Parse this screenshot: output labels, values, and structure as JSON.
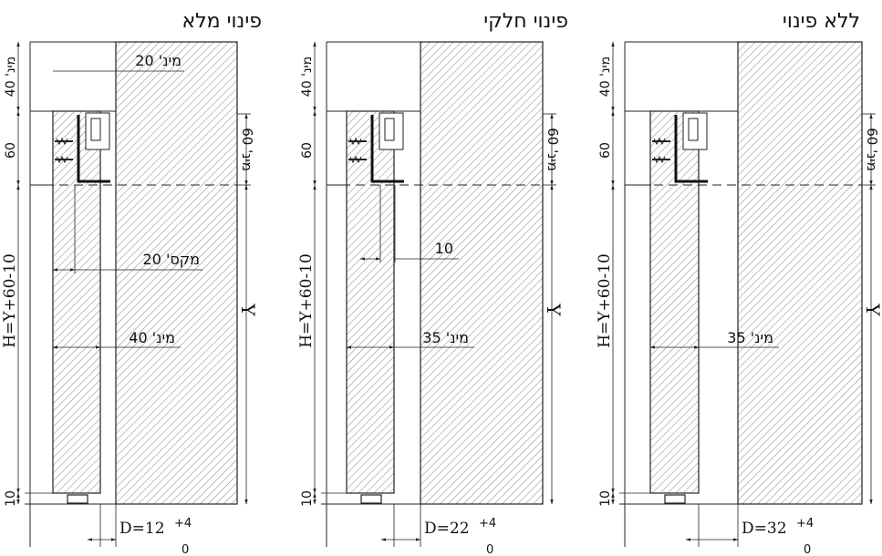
{
  "colors": {
    "line": "#222222",
    "hatch": "#555555",
    "background": "#ffffff"
  },
  "panels": [
    {
      "title": "פינוי מלא",
      "top_min": "מינ' 40",
      "top_min_20": "מינ' 20",
      "left_60": "60",
      "right_60": "מינ' 60",
      "max_label": "מקס' 20",
      "min_label": "מינ' 40",
      "h_formula": "H=Y+60-10",
      "y_label": "Y",
      "bottom_10": "10",
      "d_label": "D=12",
      "tol_plus": "+4",
      "tol_zero": "0"
    },
    {
      "title": "פינוי חלקי",
      "top_min": "מינ' 40",
      "left_60": "60",
      "right_60": "מינ' 60",
      "gap_label": "10",
      "min_label": "מינ' 35",
      "h_formula": "H=Y+60-10",
      "y_label": "Y",
      "bottom_10": "10",
      "d_label": "D=22",
      "tol_plus": "+4",
      "tol_zero": "0"
    },
    {
      "title": "ללא פינוי",
      "top_min": "מינ' 40",
      "left_60": "60",
      "right_60": "מינ' 60",
      "min_label": "מינ' 35",
      "h_formula": "H=Y+60-10",
      "y_label": "Y",
      "bottom_10": "10",
      "d_label": "D=32",
      "tol_plus": "+4",
      "tol_zero": "0"
    }
  ]
}
